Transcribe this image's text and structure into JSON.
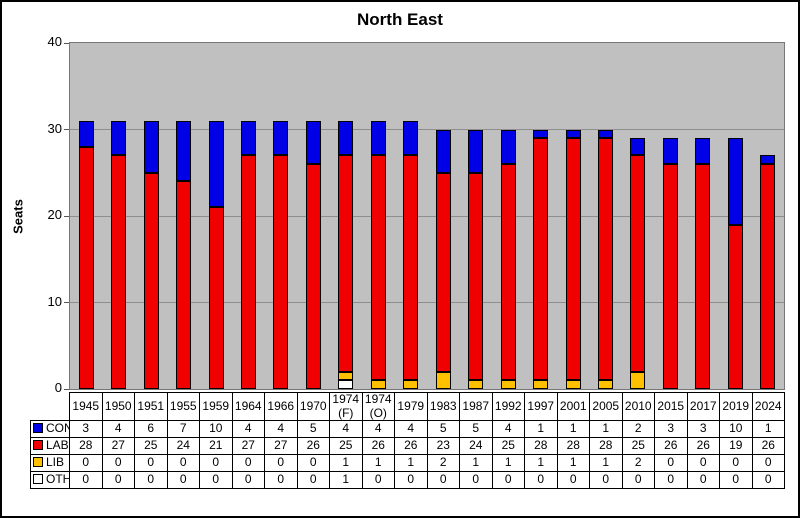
{
  "chart_data": {
    "type": "bar",
    "stacked": true,
    "title": "North East",
    "ylabel": "Seats",
    "ylim": [
      0,
      40
    ],
    "yticks": [
      0,
      10,
      20,
      30,
      40
    ],
    "grid": true,
    "plot_background": "#c0c0c0",
    "legend_position": "table-left",
    "categories": [
      "1945",
      "1950",
      "1951",
      "1955",
      "1959",
      "1964",
      "1966",
      "1970",
      "1974 (F)",
      "1974 (O)",
      "1979",
      "1983",
      "1987",
      "1992",
      "1997",
      "2001",
      "2005",
      "2010",
      "2015",
      "2017",
      "2019",
      "2024"
    ],
    "series": [
      {
        "name": "CON",
        "color": "#0000e6",
        "values": [
          3,
          4,
          6,
          7,
          10,
          4,
          4,
          5,
          4,
          4,
          4,
          5,
          5,
          4,
          1,
          1,
          1,
          2,
          3,
          3,
          10,
          1
        ]
      },
      {
        "name": "LAB",
        "color": "#f00000",
        "values": [
          28,
          27,
          25,
          24,
          21,
          27,
          27,
          26,
          25,
          26,
          26,
          23,
          24,
          25,
          28,
          28,
          28,
          25,
          26,
          26,
          19,
          26
        ]
      },
      {
        "name": "LIB",
        "color": "#ffc000",
        "values": [
          0,
          0,
          0,
          0,
          0,
          0,
          0,
          0,
          1,
          1,
          1,
          2,
          1,
          1,
          1,
          1,
          1,
          2,
          0,
          0,
          0,
          0
        ]
      },
      {
        "name": "OTH",
        "color": "#ffffff",
        "values": [
          0,
          0,
          0,
          0,
          0,
          0,
          0,
          0,
          1,
          0,
          0,
          0,
          0,
          0,
          0,
          0,
          0,
          0,
          0,
          0,
          0,
          0
        ]
      }
    ],
    "stack_order_bottom_to_top": [
      "OTH",
      "LIB",
      "LAB",
      "CON"
    ],
    "corner_cell": ""
  }
}
